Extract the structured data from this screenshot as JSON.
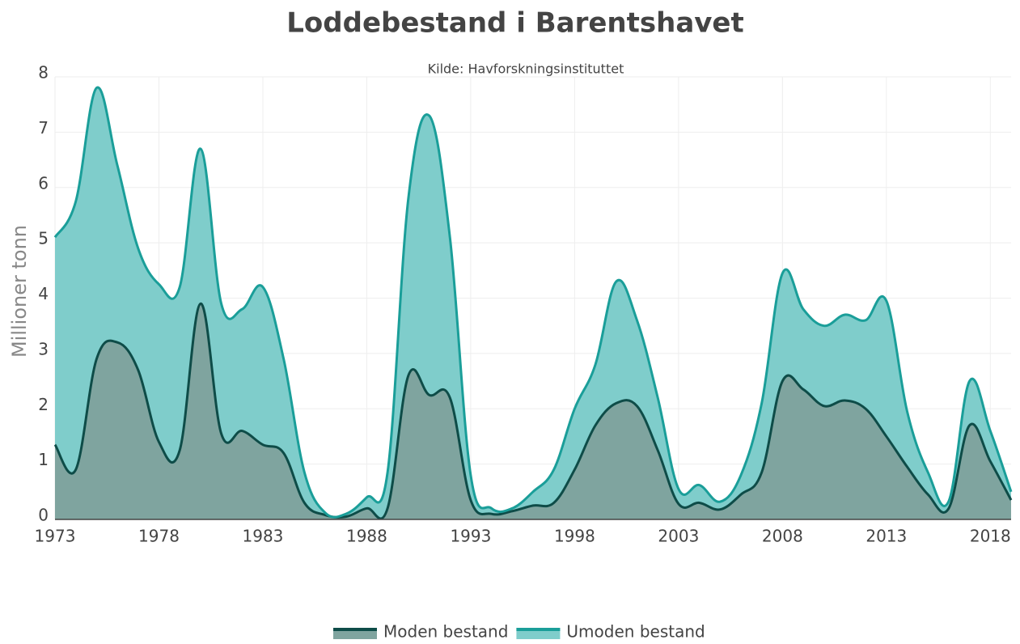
{
  "chart_data": {
    "type": "stacked_area",
    "title": "Loddebestand i Barentshavet",
    "subtitle": "Kilde: Havforskningsinstituttet",
    "y_label": "Millioner tonn",
    "x": [
      1973,
      1974,
      1975,
      1976,
      1977,
      1978,
      1979,
      1980,
      1981,
      1982,
      1983,
      1984,
      1985,
      1986,
      1987,
      1988,
      1989,
      1990,
      1991,
      1992,
      1993,
      1994,
      1995,
      1996,
      1997,
      1998,
      1999,
      2000,
      2001,
      2002,
      2003,
      2004,
      2005,
      2006,
      2007,
      2008,
      2009,
      2010,
      2011,
      2012,
      2013,
      2014,
      2015,
      2016,
      2017,
      2018,
      2019
    ],
    "series": [
      {
        "name": "Moden bestand",
        "color": "#0e4c48",
        "fill": "#7fa49f",
        "values": [
          1.35,
          0.9,
          2.9,
          3.2,
          2.7,
          1.4,
          1.25,
          3.9,
          1.55,
          1.6,
          1.35,
          1.2,
          0.3,
          0.08,
          0.05,
          0.2,
          0.2,
          2.6,
          2.25,
          2.2,
          0.35,
          0.1,
          0.15,
          0.25,
          0.3,
          0.9,
          1.7,
          2.1,
          2.05,
          1.25,
          0.28,
          0.3,
          0.18,
          0.45,
          0.85,
          2.5,
          2.35,
          2.05,
          2.15,
          2.0,
          1.5,
          0.95,
          0.45,
          0.2,
          1.7,
          1.05,
          0.35
        ]
      },
      {
        "name": "Umoden bestand",
        "color": "#1a9e99",
        "fill": "#7fcdcb",
        "values": [
          3.75,
          4.85,
          4.9,
          3.2,
          2.2,
          2.85,
          2.95,
          2.8,
          2.35,
          2.2,
          2.85,
          1.7,
          0.55,
          0.04,
          0.05,
          0.2,
          0.65,
          3.2,
          5.05,
          2.9,
          0.45,
          0.1,
          0.05,
          0.25,
          0.6,
          1.1,
          1.1,
          2.2,
          1.55,
          0.95,
          0.27,
          0.32,
          0.14,
          0.35,
          1.25,
          1.95,
          1.45,
          1.45,
          1.55,
          1.6,
          2.45,
          1.0,
          0.4,
          0.13,
          0.8,
          0.55,
          0.15
        ]
      }
    ],
    "xlim": [
      1973,
      2019
    ],
    "xticks": [
      1973,
      1978,
      1983,
      1988,
      1993,
      1998,
      2003,
      2008,
      2013,
      2018
    ],
    "ylim": [
      0,
      8
    ],
    "yticks": [
      0,
      1,
      2,
      3,
      4,
      5,
      6,
      7,
      8
    ],
    "grid": true,
    "legend": "bottom"
  }
}
